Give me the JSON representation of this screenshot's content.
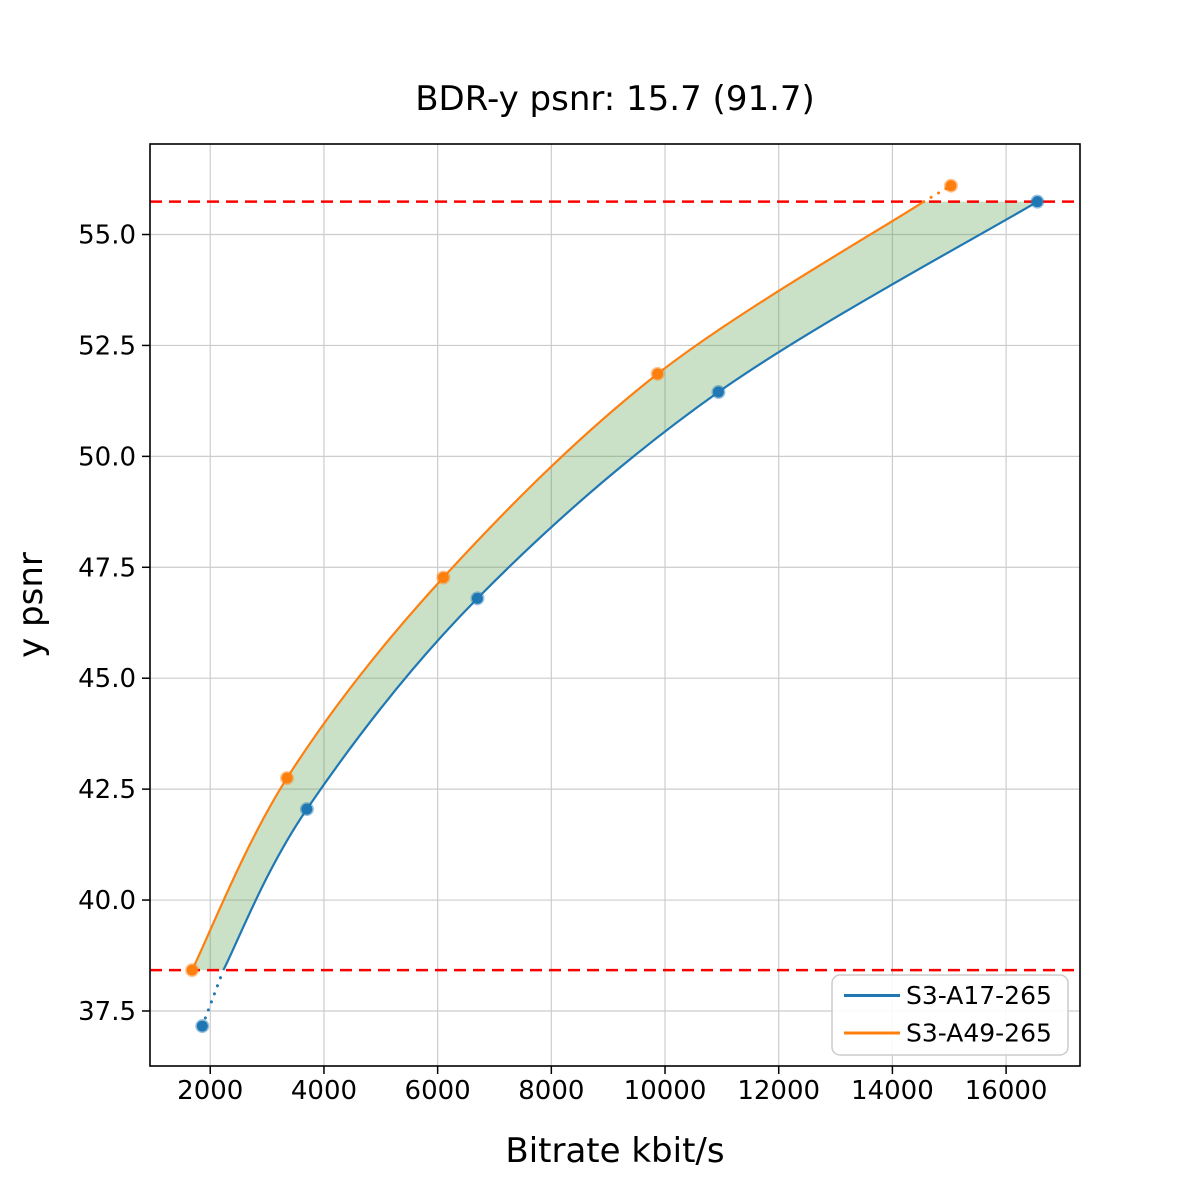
{
  "figure": {
    "background_color": "#ffffff"
  },
  "chart_data": {
    "type": "line",
    "title": "BDR-y psnr: 15.7 (91.7)",
    "xlabel": "Bitrate kbit/s",
    "ylabel": "y psnr",
    "xlim": [
      940,
      17300
    ],
    "ylim": [
      36.26,
      57.04
    ],
    "xticks": [
      2000,
      4000,
      6000,
      8000,
      10000,
      12000,
      14000,
      16000
    ],
    "yticks": [
      37.5,
      40.0,
      42.5,
      45.0,
      47.5,
      50.0,
      52.5,
      55.0
    ],
    "grid": true,
    "grid_color": "#cccccc",
    "axis_color": "#000000",
    "legend": {
      "position": "lower right"
    },
    "series": [
      {
        "name": "S3-A17-265",
        "color": "#1f77b4",
        "markers": [
          [
            1860,
            37.16
          ],
          [
            3700,
            42.05
          ],
          [
            6700,
            46.8
          ],
          [
            10940,
            51.45
          ],
          [
            16550,
            55.74
          ]
        ],
        "solid": [
          [
            2230,
            38.42
          ],
          [
            3700,
            42.05
          ],
          [
            6700,
            46.8
          ],
          [
            10940,
            51.45
          ],
          [
            16550,
            55.74
          ]
        ],
        "dotted": [
          [
            1860,
            37.16
          ],
          [
            2230,
            38.42
          ]
        ]
      },
      {
        "name": "S3-A49-265",
        "color": "#ff7f0e",
        "markers": [
          [
            1680,
            38.42
          ],
          [
            3350,
            42.75
          ],
          [
            6100,
            47.27
          ],
          [
            9870,
            51.86
          ],
          [
            15030,
            56.1
          ]
        ],
        "solid": [
          [
            1680,
            38.42
          ],
          [
            3350,
            42.75
          ],
          [
            6100,
            47.27
          ],
          [
            9870,
            51.86
          ],
          [
            14550,
            55.74
          ]
        ],
        "dotted": [
          [
            14550,
            55.74
          ],
          [
            15030,
            56.1
          ]
        ]
      }
    ],
    "hlines": {
      "values": [
        55.74,
        38.42
      ],
      "color": "#ff0000",
      "style": "dashed"
    },
    "fill_between": {
      "between": [
        "S3-A49-265",
        "S3-A17-265"
      ],
      "color": "rgba(90,160,80,0.32)"
    }
  }
}
